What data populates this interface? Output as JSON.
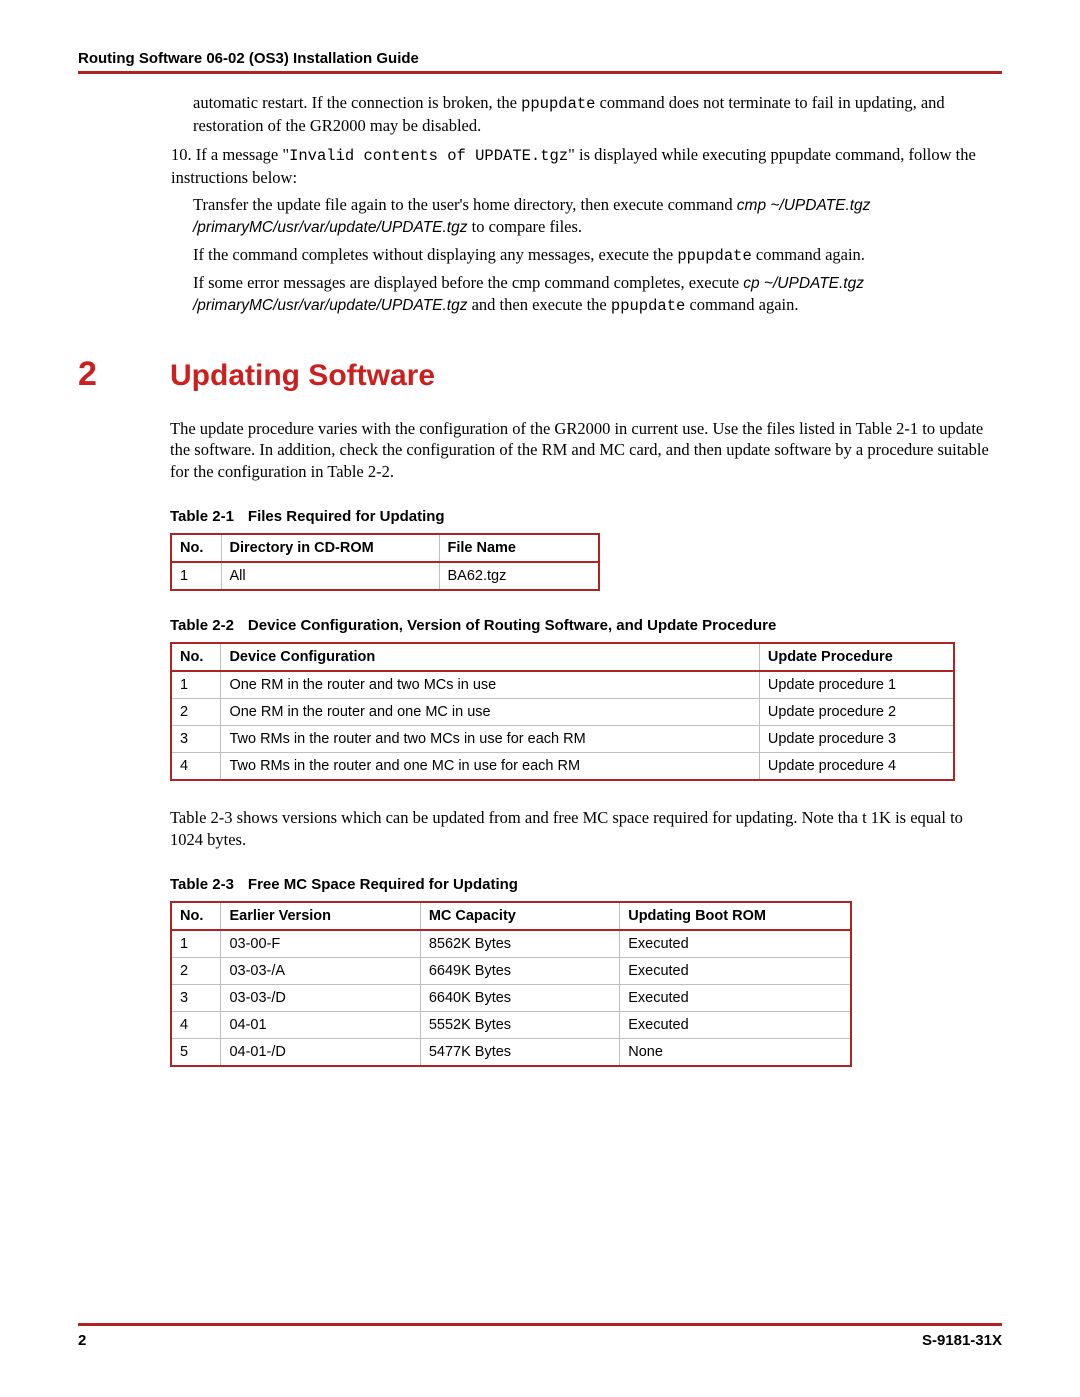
{
  "header": {
    "title": "Routing Software 06-02 (OS3) Installation Guide"
  },
  "continuation": {
    "p1_a": "automatic restart. If the connection is broken, the ",
    "p1_cmd": "ppupdate",
    "p1_b": " command does not terminate to fail in updating, and restoration of the GR2000 may be disabled.",
    "step_num": "10.",
    "step_a": " If a message \"",
    "step_cmd": "Invalid contents of UPDATE.tgz",
    "step_b": "\" is displayed while executing ppupdate command, follow the instructions below:",
    "sub1_a": "Transfer the update file again to the user's home directory, then execute command ",
    "sub1_cmd": "cmp ~/UPDATE.tgz /primaryMC/usr/var/update/UPDATE.tgz",
    "sub1_b": " to compare files.",
    "sub2_a": "If the command completes without displaying any messages, execute the ",
    "sub2_cmd": "ppupdate",
    "sub2_b": " command again.",
    "sub3_a": "If some error messages are displayed before the cmp command completes, execute ",
    "sub3_cmd": "cp ~/UPDATE.tgz /primaryMC/usr/var/update/UPDATE.tgz",
    "sub3_b": " and then execute the ",
    "sub3_cmd2": "ppupdate",
    "sub3_c": " command again."
  },
  "section": {
    "num": "2",
    "title": "Updating Software"
  },
  "intro": "The update procedure varies with the configuration of the GR2000 in current use.  Use the files listed in Table 2-1 to update the software.  In addition, check the configuration of the RM and MC card, and then update software by a procedure suitable for the configuration in Table 2-2.",
  "table1": {
    "caption_label": "Table 2-1",
    "caption_title": "Files Required for Updating",
    "headers": {
      "c1": "No.",
      "c2": "Directory in CD-ROM",
      "c3": "File Name"
    },
    "rows": [
      {
        "c1": "1",
        "c2": "All",
        "c3": "BA62.tgz"
      }
    ]
  },
  "table2": {
    "caption_label": "Table 2-2",
    "caption_title": "Device Configuration, Version of Routing Software, and Update Procedure",
    "headers": {
      "c1": "No.",
      "c2": "Device Configuration",
      "c3": "Update Procedure"
    },
    "rows": [
      {
        "c1": "1",
        "c2": "One RM in the router and two MCs in use",
        "c3": "Update procedure 1"
      },
      {
        "c1": "2",
        "c2": "One RM in the router and one MC in use",
        "c3": "Update procedure 2"
      },
      {
        "c1": "3",
        "c2": "Two RMs in the router and two MCs  in use for each RM",
        "c3": "Update procedure 3"
      },
      {
        "c1": "4",
        "c2": "Two RMs in the router and one MC in use for each RM",
        "c3": "Update procedure 4"
      }
    ]
  },
  "after_t2": "Table 2-3 shows versions which can be updated from and free MC space required for updating. Note tha t 1K is equal to 1024 bytes.",
  "table3": {
    "caption_label": "Table 2-3",
    "caption_title": "Free MC Space Required for Updating",
    "headers": {
      "c1": "No.",
      "c2": "Earlier Version",
      "c3": "MC Capacity",
      "c4": "Updating Boot ROM"
    },
    "rows": [
      {
        "c1": "1",
        "c2": "03-00-F",
        "c3": "8562K Bytes",
        "c4": "Executed"
      },
      {
        "c1": "2",
        "c2": "03-03-/A",
        "c3": "6649K Bytes",
        "c4": "Executed"
      },
      {
        "c1": "3",
        "c2": "03-03-/D",
        "c3": "6640K Bytes",
        "c4": "Executed"
      },
      {
        "c1": "4",
        "c2": "04-01",
        "c3": "5552K Bytes",
        "c4": "Executed"
      },
      {
        "c1": "5",
        "c2": "04-01-/D",
        "c3": "5477K Bytes",
        "c4": "None"
      }
    ]
  },
  "footer": {
    "page": "2",
    "doc": "S-9181-31X"
  },
  "colors": {
    "accent": "#b22222",
    "heading": "#cc2020"
  }
}
